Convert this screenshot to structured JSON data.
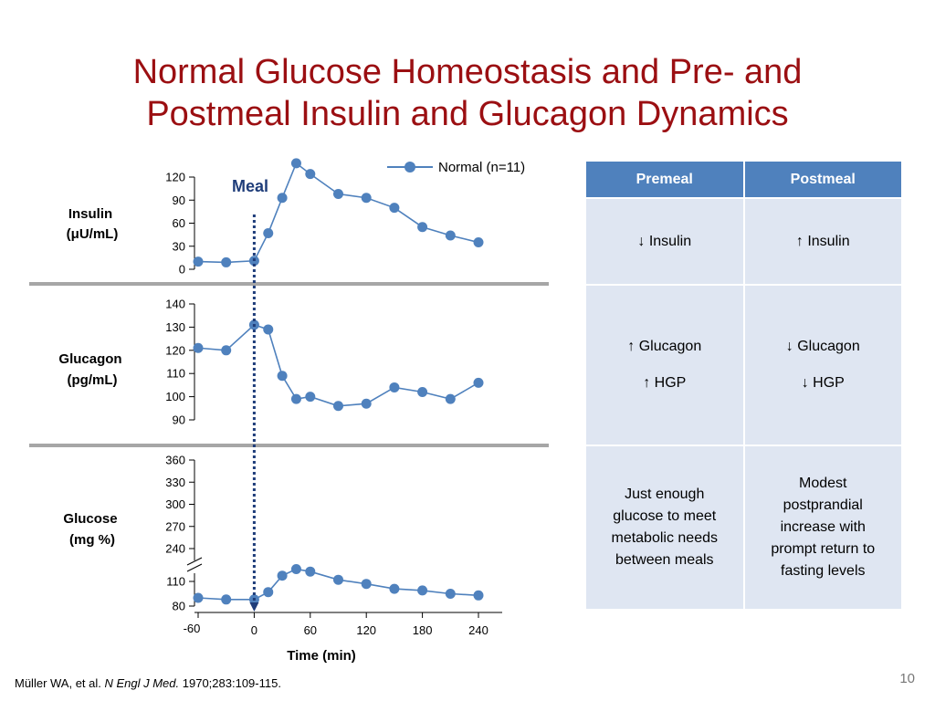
{
  "title_line1": "Normal Glucose Homeostasis and Pre- and",
  "title_line2": "Postmeal Insulin and Glucagon Dynamics",
  "chart_data": {
    "type": "line",
    "legend": "Normal (n=11)",
    "legend_position": "top-center",
    "meal_label": "Meal",
    "meal_time": 0,
    "series_color": "#4f81bd",
    "xlabel": "Time (min)",
    "x_ticks": [
      -60,
      0,
      60,
      120,
      180,
      240
    ],
    "panels": [
      {
        "ylabel_line1": "Insulin",
        "ylabel_line2": "(μU/mL)",
        "y_ticks": [
          0,
          30,
          60,
          90,
          120
        ],
        "ylim": [
          0,
          120
        ],
        "x": [
          -60,
          -30,
          0,
          15,
          30,
          45,
          60,
          90,
          120,
          150,
          180,
          210,
          240
        ],
        "values": [
          10,
          9,
          11,
          47,
          93,
          138,
          124,
          98,
          93,
          80,
          55,
          44,
          35
        ]
      },
      {
        "ylabel_line1": "Glucagon",
        "ylabel_line2": "(pg/mL)",
        "y_ticks": [
          90,
          100,
          110,
          120,
          130,
          140
        ],
        "ylim": [
          90,
          140
        ],
        "x": [
          -60,
          -30,
          0,
          15,
          30,
          45,
          60,
          90,
          120,
          150,
          180,
          210,
          240
        ],
        "values": [
          121,
          120,
          131,
          129,
          109,
          99,
          100,
          96,
          97,
          104,
          102,
          99,
          106
        ]
      },
      {
        "ylabel_line1": "Glucose",
        "ylabel_line2": "(mg %)",
        "y_ticks": [
          80,
          110,
          240,
          270,
          300,
          330,
          360
        ],
        "axis_break": true,
        "x": [
          -60,
          -30,
          0,
          15,
          30,
          45,
          60,
          90,
          120,
          150,
          180,
          210,
          240
        ],
        "values": [
          90,
          88,
          88,
          97,
          117,
          125,
          122,
          112,
          107,
          101,
          99,
          95,
          93
        ]
      }
    ]
  },
  "table": {
    "headers": [
      "Premeal",
      "Postmeal"
    ],
    "rows": [
      {
        "premeal": [
          "↓ Insulin"
        ],
        "postmeal": [
          "↑ Insulin"
        ]
      },
      {
        "premeal": [
          "↑ Glucagon",
          "↑ HGP"
        ],
        "postmeal": [
          "↓ Glucagon",
          "↓ HGP"
        ]
      },
      {
        "premeal": [
          "Just enough",
          "glucose to meet",
          "metabolic needs",
          "between meals"
        ],
        "postmeal": [
          "Modest",
          "postprandial",
          "increase with",
          "prompt return to",
          "fasting levels"
        ]
      }
    ]
  },
  "citation": {
    "authors": "Müller WA, et al. ",
    "journal": "N Engl J Med.",
    "rest": " 1970;283:109-115."
  },
  "page_number": "10"
}
